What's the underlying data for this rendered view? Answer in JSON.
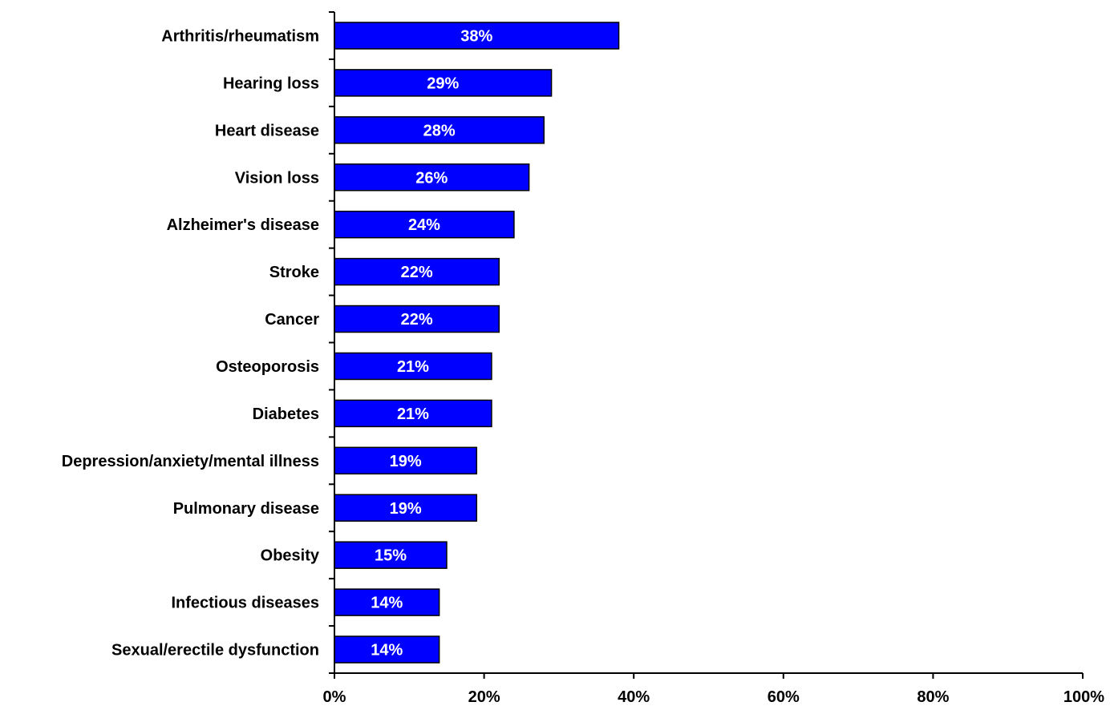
{
  "chart_data": {
    "type": "bar",
    "orientation": "horizontal",
    "title": "",
    "xlabel": "",
    "ylabel": "",
    "categories": [
      "Arthritis/rheumatism",
      "Hearing loss",
      "Heart disease",
      "Vision loss",
      "Alzheimer's disease",
      "Stroke",
      "Cancer",
      "Osteoporosis",
      "Diabetes",
      "Depression/anxiety/mental illness",
      "Pulmonary disease",
      "Obesity",
      "Infectious diseases",
      "Sexual/erectile dysfunction"
    ],
    "values": [
      38,
      29,
      28,
      26,
      24,
      22,
      22,
      21,
      21,
      19,
      19,
      15,
      14,
      14
    ],
    "data_labels": [
      "38%",
      "29%",
      "28%",
      "26%",
      "24%",
      "22%",
      "22%",
      "21%",
      "21%",
      "19%",
      "19%",
      "15%",
      "14%",
      "14%"
    ],
    "xlim": [
      0,
      100
    ],
    "x_ticks": [
      0,
      20,
      40,
      60,
      80,
      100
    ],
    "x_tick_labels": [
      "0%",
      "20%",
      "40%",
      "60%",
      "80%",
      "100%"
    ],
    "grid": false,
    "legend": "none",
    "colors": {
      "bar_fill": "#0000ff",
      "bar_stroke": "#000000",
      "data_label": "#ffffff",
      "axis": "#000000"
    }
  }
}
